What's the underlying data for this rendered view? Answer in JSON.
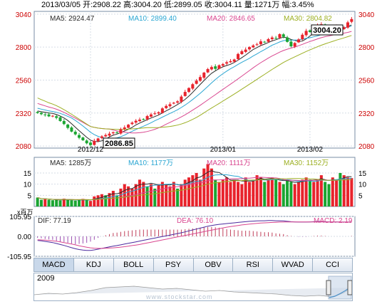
{
  "header": {
    "text": "2013/03/05 开:2908.22 高:3004.20 低:2899.05 收:3004.11 量:1271万 幅:3.45%"
  },
  "tabs": [
    "MACD",
    "KDJ",
    "BOLL",
    "PSY",
    "OBV",
    "RSI",
    "WVAD",
    "CCI"
  ],
  "active_tab": "MACD",
  "navigator": {
    "year_label": "2009"
  },
  "watermark": "www.stockstar.com",
  "colors": {
    "up": "#e8232c",
    "down": "#1aa531",
    "ma5": "#2a2a2a",
    "ma10": "#2aa6d2",
    "ma20": "#d9468f",
    "ma30": "#9caf22"
  },
  "chart_data": [
    {
      "type": "candlestick",
      "title": "",
      "x_ticks": [
        "2012/12",
        "2013/01",
        "2013/02"
      ],
      "y_ticks": [
        3040,
        2800,
        2560,
        2320,
        2080
      ],
      "ylim": [
        2065,
        3060
      ],
      "legend": [
        {
          "label": "MA5: 2924.47",
          "color": "#2a2a2a"
        },
        {
          "label": "MA10: 2899.40",
          "color": "#2aa6d2"
        },
        {
          "label": "MA20: 2846.65",
          "color": "#d9468f"
        },
        {
          "label": "MA30: 2804.82",
          "color": "#9caf22"
        }
      ],
      "annotations": [
        {
          "label": "3004.20",
          "kind": "high"
        },
        {
          "label": "2086.85",
          "kind": "low"
        }
      ],
      "close": [
        2320,
        2312,
        2305,
        2296,
        2300,
        2285,
        2262,
        2240,
        2212,
        2185,
        2165,
        2140,
        2122,
        2100,
        2087,
        2118,
        2135,
        2150,
        2160,
        2170,
        2180,
        2176,
        2202,
        2215,
        2235,
        2250,
        2264,
        2272,
        2275,
        2298,
        2310,
        2318,
        2326,
        2354,
        2372,
        2384,
        2395,
        2405,
        2440,
        2474,
        2502,
        2530,
        2556,
        2582,
        2614,
        2640,
        2655,
        2642,
        2668,
        2676,
        2690,
        2698,
        2710,
        2750,
        2770,
        2782,
        2800,
        2812,
        2820,
        2842,
        2835,
        2858,
        2870,
        2864,
        2894,
        2875,
        2838,
        2806,
        2830,
        2856,
        2890,
        2918,
        2910,
        2935,
        2960,
        2966,
        2940,
        2920,
        2940,
        2950,
        2930,
        2945,
        2980,
        3004
      ]
    },
    {
      "type": "bar",
      "title": "",
      "y_ticks": [
        15,
        10,
        5
      ],
      "unit": "x百万",
      "ylim": [
        0,
        22
      ],
      "legend": [
        {
          "label": "MA5: 1285万",
          "color": "#2a2a2a"
        },
        {
          "label": "MA10: 1177万",
          "color": "#2aa6d2"
        },
        {
          "label": "MA20: 1111万",
          "color": "#d9468f"
        },
        {
          "label": "MA30: 1152万",
          "color": "#9caf22"
        }
      ],
      "values": [
        4,
        3,
        3.2,
        3,
        2.8,
        3,
        2.7,
        3.5,
        3,
        2.8,
        2.6,
        3,
        3.4,
        3,
        2.5,
        4.5,
        5,
        5.5,
        5,
        6,
        7,
        5,
        8,
        10,
        9,
        8,
        10,
        12,
        11,
        9,
        10,
        8,
        10,
        11,
        10,
        9,
        11,
        8,
        10,
        12,
        13,
        14,
        15,
        12,
        17,
        19,
        17,
        12,
        11,
        12,
        13,
        11,
        12,
        11,
        10,
        13,
        11,
        12,
        14,
        13,
        11,
        12,
        13,
        12,
        11,
        10,
        12,
        11,
        10,
        11,
        12,
        13,
        12,
        11,
        12,
        14,
        11,
        10,
        13,
        12,
        15,
        14,
        13,
        12.7
      ],
      "up_flags": [
        0,
        0,
        1,
        0,
        0,
        0,
        0,
        1,
        0,
        0,
        0,
        0,
        1,
        0,
        1,
        1,
        1,
        1,
        0,
        1,
        1,
        0,
        1,
        1,
        1,
        1,
        1,
        1,
        1,
        0,
        1,
        0,
        1,
        1,
        1,
        1,
        1,
        0,
        1,
        1,
        1,
        1,
        1,
        1,
        1,
        1,
        1,
        0,
        1,
        1,
        1,
        1,
        1,
        1,
        1,
        1,
        1,
        1,
        1,
        1,
        0,
        1,
        1,
        0,
        1,
        0,
        0,
        0,
        1,
        1,
        1,
        1,
        0,
        1,
        1,
        1,
        0,
        0,
        1,
        1,
        0,
        1,
        1,
        1
      ]
    },
    {
      "type": "line",
      "title": "",
      "y_ticks": [
        "105.95",
        "0.00",
        "-105.95"
      ],
      "ylim": [
        -105.95,
        105.95
      ],
      "legend": [
        {
          "label": "DIF: 77.19",
          "color": "#2a2a2a"
        },
        {
          "label": "DEA: 76.10",
          "color": "#d9468f"
        },
        {
          "label": "MACD: 2.19",
          "color": "#d9468f"
        }
      ],
      "series": [
        {
          "name": "DIF",
          "values": [
            -22,
            -24,
            -27,
            -30,
            -33,
            -38,
            -43,
            -48,
            -54,
            -60,
            -66,
            -70,
            -73,
            -75,
            -75,
            -72,
            -68,
            -64,
            -60,
            -56,
            -52,
            -49,
            -45,
            -41,
            -37,
            -33,
            -29,
            -25,
            -21,
            -17,
            -13,
            -9,
            -5,
            -1,
            3,
            7,
            11,
            15,
            19,
            24,
            29,
            34,
            39,
            44,
            49,
            54,
            58,
            61,
            64,
            66,
            68,
            70,
            72,
            74,
            76,
            78,
            80,
            81,
            82,
            83,
            83,
            84,
            84,
            83,
            83,
            82,
            80,
            78,
            77,
            76,
            76,
            76,
            77,
            78,
            79,
            79,
            78,
            77,
            77,
            77,
            76,
            76,
            76,
            77
          ]
        },
        {
          "name": "DEA",
          "values": [
            -18,
            -19,
            -20,
            -22,
            -24,
            -26,
            -29,
            -33,
            -37,
            -41,
            -45,
            -50,
            -54,
            -58,
            -61,
            -63,
            -64,
            -64,
            -63,
            -62,
            -61,
            -59,
            -57,
            -55,
            -52,
            -49,
            -46,
            -43,
            -39,
            -35,
            -31,
            -27,
            -23,
            -19,
            -15,
            -11,
            -7,
            -3,
            1,
            5,
            9,
            13,
            17,
            21,
            25,
            29,
            33,
            37,
            41,
            45,
            49,
            52,
            55,
            58,
            61,
            63,
            65,
            67,
            69,
            71,
            72,
            73,
            74,
            75,
            76,
            76,
            77,
            77,
            77,
            77,
            77,
            77,
            77,
            77,
            77,
            77,
            77,
            77,
            77,
            77,
            76,
            76,
            76,
            76
          ]
        },
        {
          "name": "MACD",
          "values": [
            -8,
            -10,
            -14,
            -16,
            -18,
            -24,
            -28,
            -30,
            -34,
            -38,
            -42,
            -40,
            -38,
            -34,
            -28,
            -18,
            -8,
            0,
            6,
            12,
            18,
            20,
            24,
            28,
            30,
            32,
            34,
            36,
            36,
            36,
            36,
            36,
            36,
            36,
            36,
            36,
            36,
            36,
            36,
            38,
            40,
            42,
            44,
            46,
            48,
            50,
            50,
            48,
            46,
            42,
            38,
            36,
            34,
            32,
            30,
            30,
            30,
            28,
            26,
            24,
            22,
            22,
            20,
            16,
            14,
            12,
            6,
            2,
            0,
            -2,
            -2,
            -2,
            0,
            2,
            4,
            4,
            2,
            0,
            0,
            0,
            0,
            0,
            0,
            2
          ]
        }
      ]
    }
  ]
}
